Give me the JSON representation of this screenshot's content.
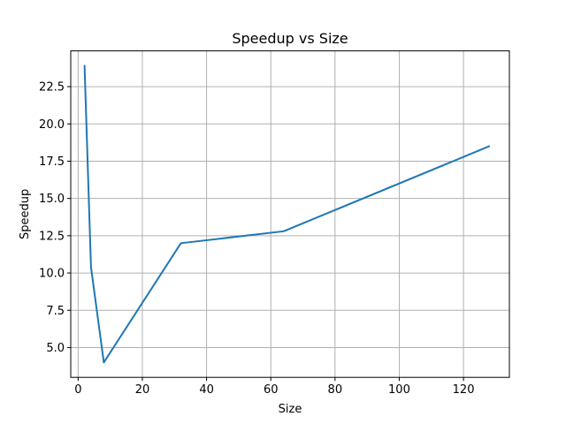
{
  "chart_data": {
    "type": "line",
    "title": "Speedup vs Size",
    "xlabel": "Size",
    "ylabel": "Speedup",
    "xlim": [
      -2.3,
      134.3
    ],
    "ylim": [
      3.0,
      24.9
    ],
    "xticks": [
      0,
      20,
      40,
      60,
      80,
      100,
      120
    ],
    "xtick_labels": [
      "0",
      "20",
      "40",
      "60",
      "80",
      "100",
      "120"
    ],
    "yticks": [
      5.0,
      7.5,
      10.0,
      12.5,
      15.0,
      17.5,
      20.0,
      22.5
    ],
    "ytick_labels": [
      "5.0",
      "7.5",
      "10.0",
      "12.5",
      "15.0",
      "17.5",
      "20.0",
      "22.5"
    ],
    "grid": true,
    "series": [
      {
        "color": "#1f77b4",
        "x": [
          2,
          4,
          8,
          32,
          64,
          128
        ],
        "y": [
          23.9,
          10.4,
          4.0,
          12.0,
          12.8,
          18.5
        ]
      }
    ]
  }
}
